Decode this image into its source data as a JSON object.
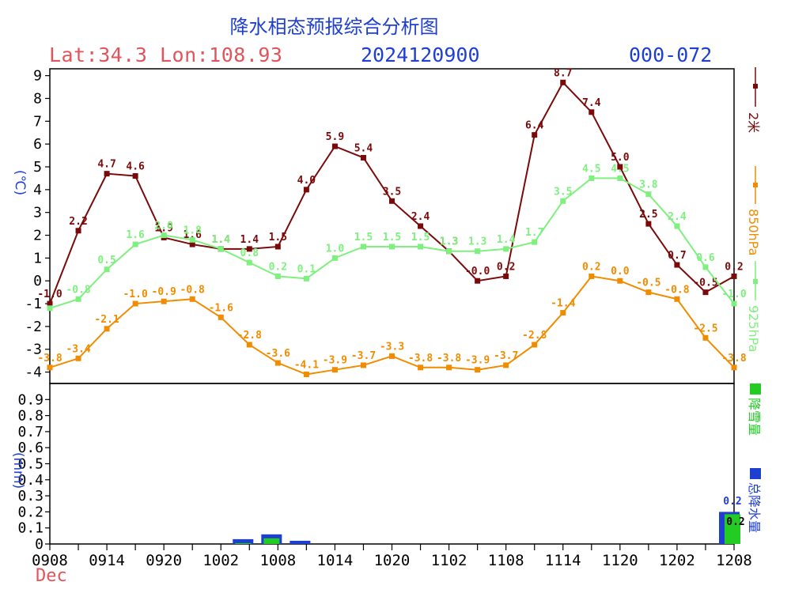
{
  "header": {
    "title": "降水相态预报综合分析图",
    "latlon": "Lat:34.3 Lon:108.93",
    "run": "2024120900",
    "range": "000-072",
    "month": "Dec"
  },
  "colors": {
    "t2m": "#7a0a0a",
    "t850": "#f08c00",
    "t925": "#7ef07e",
    "snow": "#22cc22",
    "total": "#1f3fd1",
    "title": "#1f3fd1",
    "latlon": "#e0555b"
  },
  "legend": {
    "t2m": "2米",
    "t850": "850hPa",
    "t925": "925hPa",
    "snow": "降雪量",
    "total": "总降水量"
  },
  "chart_data": [
    {
      "type": "line",
      "ylabel": "(℃)",
      "ylim": [
        -4.5,
        9.3
      ],
      "yticks": [
        -4,
        -3,
        -2,
        -1,
        0,
        1,
        2,
        3,
        4,
        5,
        6,
        7,
        8,
        9
      ],
      "x": [
        "0908",
        "0911",
        "0914",
        "0917",
        "0920",
        "0923",
        "1002",
        "1005",
        "1008",
        "1011",
        "1014",
        "1017",
        "1020",
        "1023",
        "1102",
        "1105",
        "1108",
        "1111",
        "1114",
        "1117",
        "1120",
        "1123",
        "1202",
        "1205",
        "1208"
      ],
      "xtick_labels": [
        "0908",
        "0914",
        "0920",
        "1002",
        "1008",
        "1014",
        "1020",
        "1102",
        "1108",
        "1114",
        "1120",
        "1202",
        "1208"
      ],
      "series": [
        {
          "name": "2米",
          "key": "t2m",
          "values": [
            -1.0,
            2.2,
            4.7,
            4.6,
            1.9,
            1.6,
            1.4,
            1.4,
            1.5,
            4.0,
            5.9,
            5.4,
            3.5,
            2.4,
            1.3,
            -0.0,
            0.2,
            6.4,
            8.7,
            7.4,
            5.0,
            2.5,
            0.7,
            -0.5,
            0.2
          ],
          "labels": [
            "-1.0",
            "2.2",
            "4.7",
            "4.6",
            "1.9",
            "1.6",
            "1.4",
            "1.4",
            "1.5",
            "4.0",
            "5.9",
            "5.4",
            "3.5",
            "2.4",
            "1.3",
            "-0.0",
            "0.2",
            "6.4",
            "8.7",
            "7.4",
            "5.0",
            "2.5",
            "0.7",
            "-0.5",
            "0.2"
          ]
        },
        {
          "name": "850hPa",
          "key": "t850",
          "values": [
            -3.8,
            -3.4,
            -2.1,
            -1.0,
            -0.9,
            -0.8,
            -1.6,
            -2.8,
            -3.6,
            -4.1,
            -3.9,
            -3.7,
            -3.3,
            -3.8,
            -3.8,
            -3.9,
            -3.7,
            -2.8,
            -1.4,
            0.2,
            0.0,
            -0.5,
            -0.8,
            -2.5,
            -3.8
          ],
          "labels": [
            "-3.8",
            "-3.4",
            "-2.1",
            "-1.0",
            "-0.9",
            "-0.8",
            "-1.6",
            "-2.8",
            "-3.6",
            "-4.1",
            "-3.9",
            "-3.7",
            "-3.3",
            "-3.8",
            "-3.8",
            "-3.9",
            "-3.7",
            "-2.8",
            "-1.4",
            "0.2",
            "0.0",
            "-0.5",
            "-0.8",
            "-2.5",
            "-3.8"
          ]
        },
        {
          "name": "925hPa",
          "key": "t925",
          "values": [
            -1.2,
            -0.8,
            0.5,
            1.6,
            2.0,
            1.8,
            1.4,
            0.8,
            0.2,
            0.1,
            1.0,
            1.5,
            1.5,
            1.5,
            1.3,
            1.3,
            1.4,
            1.7,
            3.5,
            4.5,
            4.5,
            3.8,
            2.4,
            0.6,
            -1.0
          ],
          "labels": [
            "",
            "-0.8",
            "0.5",
            "1.6",
            "2.0",
            "1.8",
            "1.4",
            "0.8",
            "0.2",
            "0.1",
            "1.0",
            "1.5",
            "1.5",
            "1.5",
            "1.3",
            "1.3",
            "1.4",
            "1.7",
            "3.5",
            "4.5",
            "4.5",
            "3.8",
            "2.4",
            "0.6",
            "-1.0"
          ]
        }
      ]
    },
    {
      "type": "bar",
      "ylabel": "(mm)",
      "ylim": [
        0,
        1.0
      ],
      "yticks": [
        "0",
        "0.1",
        "0.2",
        "0.3",
        "0.4",
        "0.5",
        "0.6",
        "0.7",
        "0.8",
        "0.9"
      ],
      "series": [
        {
          "name": "降雪量",
          "key": "snow",
          "values": [
            0,
            0,
            0,
            0,
            0,
            0,
            0,
            0.02,
            0.05,
            0.0,
            0,
            0,
            0,
            0,
            0,
            0,
            0,
            0,
            0,
            0,
            0,
            0,
            0,
            0,
            0.2
          ]
        },
        {
          "name": "总降水量",
          "key": "total",
          "values": [
            0,
            0,
            0,
            0,
            0,
            0,
            0,
            0.03,
            0.06,
            0.02,
            0,
            0,
            0,
            0,
            0,
            0,
            0,
            0,
            0,
            0,
            0,
            0,
            0,
            0,
            0.2
          ]
        }
      ],
      "annotations": [
        {
          "x_index": 24,
          "text": "0.2",
          "key": "total"
        },
        {
          "x_index": 24,
          "text": "0.2",
          "key": "plain"
        }
      ]
    }
  ]
}
